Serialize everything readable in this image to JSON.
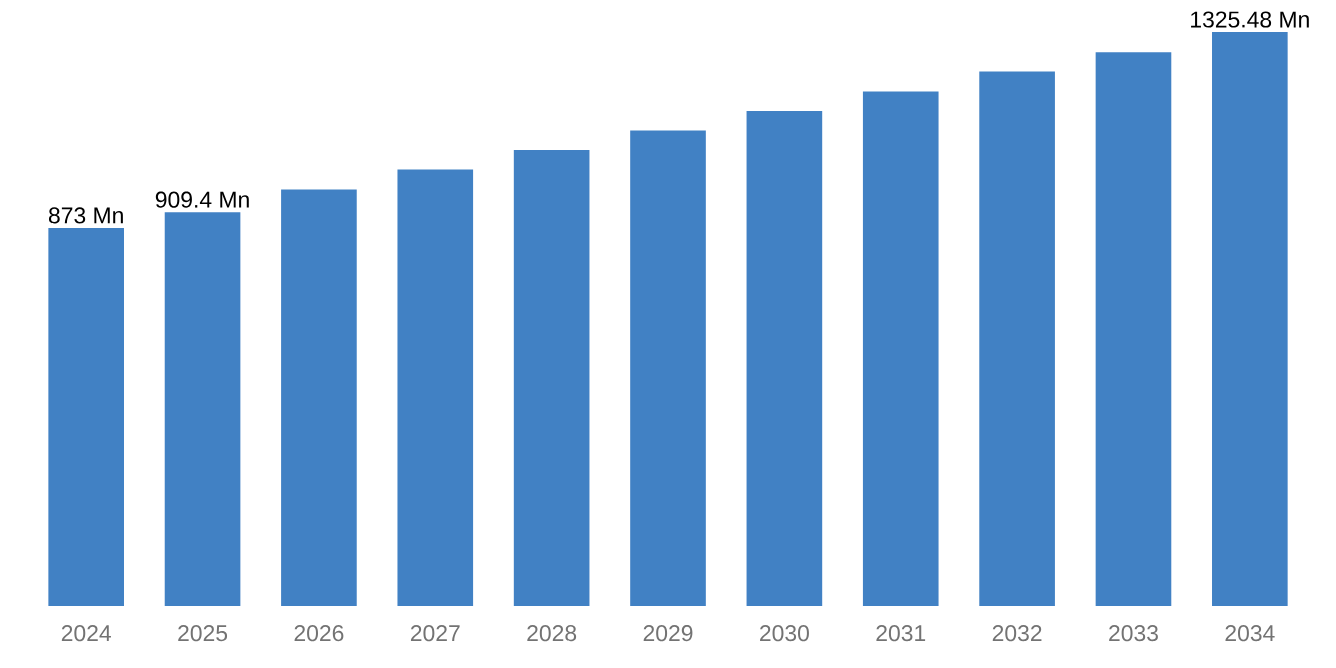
{
  "chart_data": {
    "type": "bar",
    "categories": [
      "2024",
      "2025",
      "2026",
      "2027",
      "2028",
      "2029",
      "2030",
      "2031",
      "2032",
      "2033",
      "2034"
    ],
    "values": [
      873,
      909.4,
      962,
      1008,
      1053,
      1098,
      1143,
      1188,
      1234,
      1279,
      1325.48
    ],
    "value_labels": [
      "873 Mn",
      "909.4 Mn",
      null,
      null,
      null,
      null,
      null,
      null,
      null,
      null,
      "1325.48 Mn"
    ],
    "color": "#4181c4"
  }
}
